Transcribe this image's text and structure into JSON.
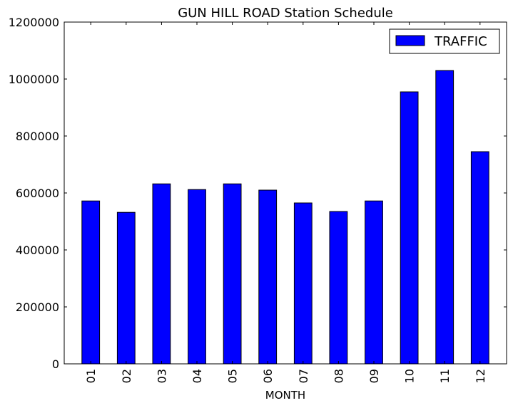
{
  "chart_data": {
    "type": "bar",
    "title": "GUN HILL ROAD Station Schedule",
    "xlabel": "MONTH",
    "ylabel": "",
    "categories": [
      "01",
      "02",
      "03",
      "04",
      "05",
      "06",
      "07",
      "08",
      "09",
      "10",
      "11",
      "12"
    ],
    "series": [
      {
        "name": "TRAFFIC",
        "color": "#0000ff",
        "values": [
          572000,
          532000,
          632000,
          612000,
          632000,
          610000,
          565000,
          535000,
          572000,
          955000,
          1030000,
          745000
        ]
      }
    ],
    "ylim": [
      0,
      1200000
    ],
    "yticks": [
      0,
      200000,
      400000,
      600000,
      800000,
      1000000,
      1200000
    ],
    "ytick_labels": [
      "0",
      "200000",
      "400000",
      "600000",
      "800000",
      "1000000",
      "1200000"
    ],
    "grid": false,
    "legend_position": "top-right"
  }
}
